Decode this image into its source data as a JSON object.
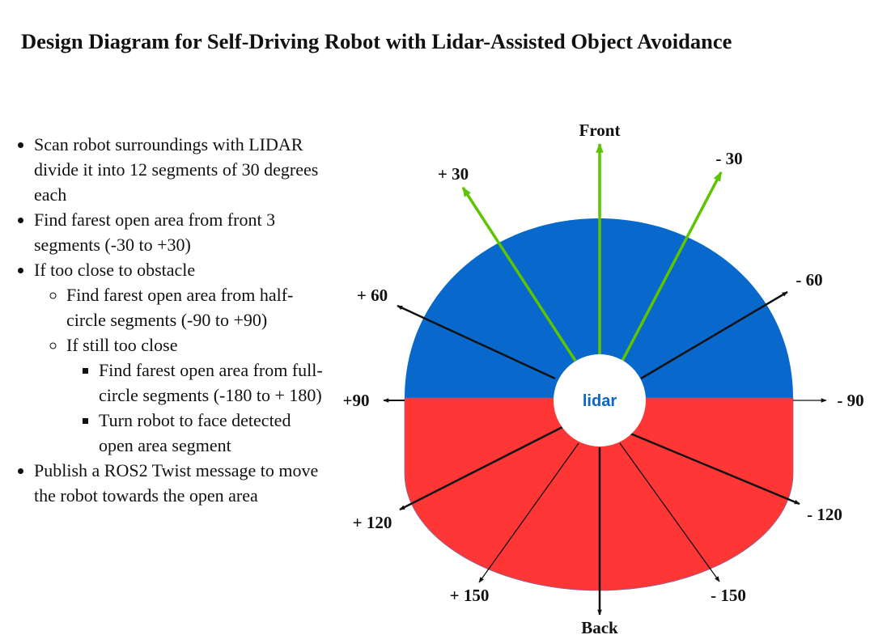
{
  "title": "Design Diagram for Self-Driving Robot with Lidar-Assisted Object Avoidance",
  "notes": {
    "item1": "Scan robot surroundings with LIDAR divide it into 12 segments of 30 degrees each",
    "item2": "Find farest open area from front 3 segments (-30 to +30)",
    "item3": "If too close to obstacle",
    "item3_sub1": "Find farest open area from half-circle segments (-90 to +90)",
    "item3_sub2": "If still too close",
    "item3_sub2_a": "Find farest open area from full-circle segments (-180 to + 180)",
    "item3_sub2_b": "Turn robot to face detected open area segment",
    "item4": "Publish a ROS2 Twist message to move the robot towards the open area"
  },
  "diagram": {
    "center_label": "lidar",
    "colors": {
      "front_half": "#0868cc",
      "back_half": "#ff3636",
      "front_arrows": "#5cc500",
      "other_arrows": "#111111"
    },
    "directions": {
      "front": "Front",
      "p30": "+ 30",
      "m30": "- 30",
      "p60": "+ 60",
      "m60": "- 60",
      "p90": "+90",
      "m90": "- 90",
      "p120": "+ 120",
      "m120": "- 120",
      "p150": "+ 150",
      "m150": "- 150",
      "back": "Back"
    }
  }
}
